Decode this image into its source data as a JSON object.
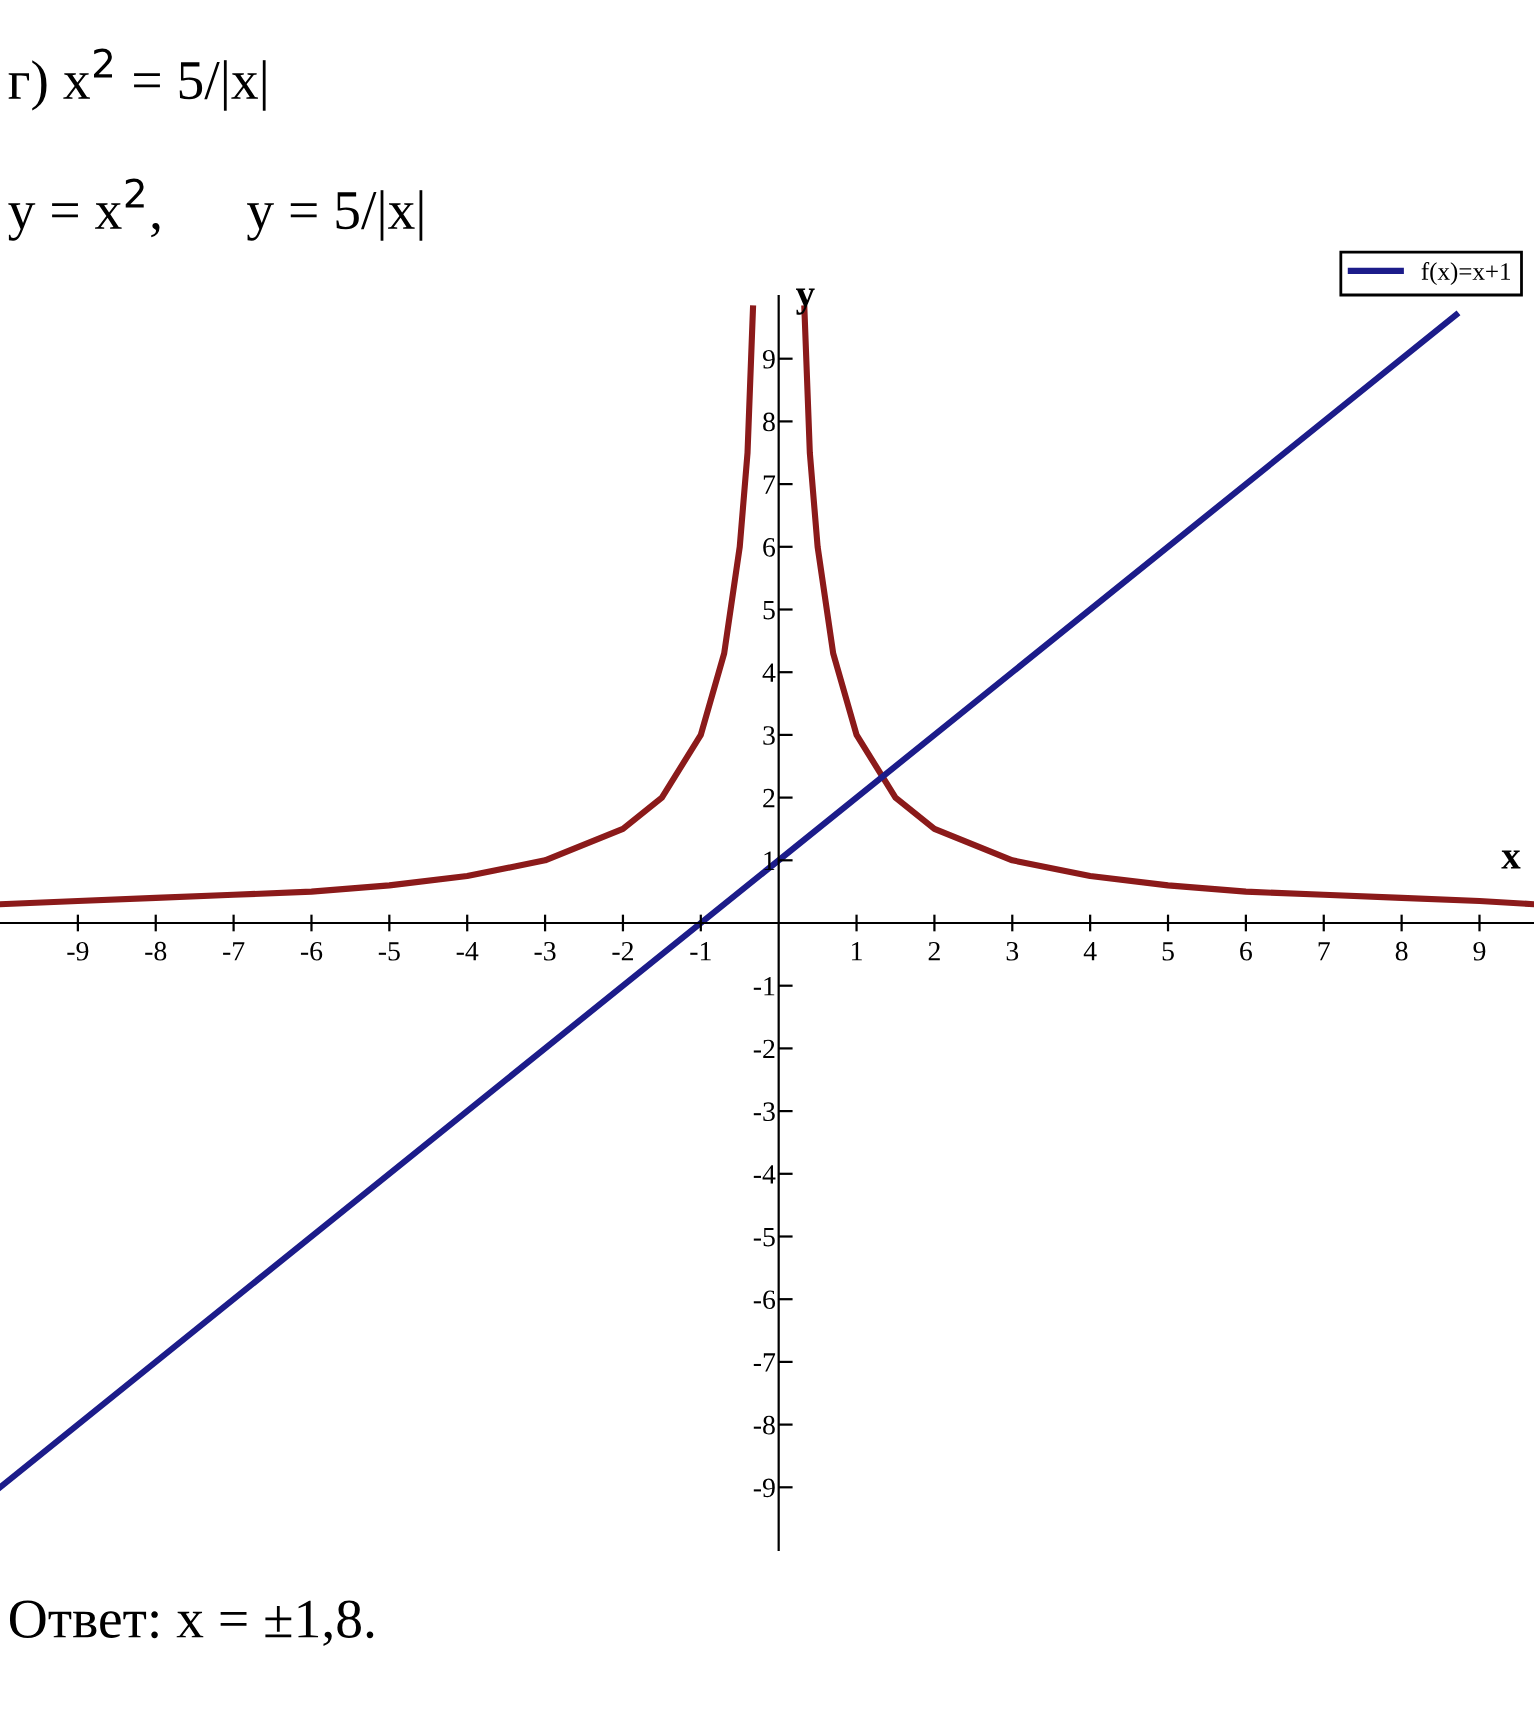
{
  "chart_data": {
    "type": "line",
    "title": "г) x$^{2}$ = 5/|x|",
    "subtitle": "y = x$^{2}$,      y = 5/|x|",
    "xlabel": "x",
    "ylabel": "y",
    "annotations": [
      "Ответ: x = ±1,8."
    ],
    "series": [
      {
        "name": null,
        "color": "#8b1a1a",
        "x": [
          -10,
          -9,
          -8,
          -7,
          -6,
          -5,
          -4,
          -3,
          -2,
          -1.5,
          -1,
          -0.7,
          -0.5,
          -0.4,
          -0.33
        ],
        "values": [
          0.3,
          0.35,
          0.4,
          0.45,
          0.5,
          0.6,
          0.75,
          1.0,
          1.5,
          2.0,
          3.0,
          4.3,
          6.0,
          7.5,
          9.8
        ]
      },
      {
        "name": null,
        "color": "#8b1a1a",
        "x": [
          0.33,
          0.4,
          0.5,
          0.7,
          1,
          1.5,
          2,
          3,
          4,
          5,
          6,
          7,
          8,
          9,
          9.7
        ],
        "values": [
          9.8,
          7.5,
          6.0,
          4.3,
          3.0,
          2.0,
          1.5,
          1.0,
          0.75,
          0.6,
          0.5,
          0.45,
          0.4,
          0.35,
          0.3
        ]
      },
      {
        "name": "f(x)=x+1",
        "color": "#1c1c8a",
        "x": [
          -10,
          8.7
        ],
        "values": [
          -9,
          9.7
        ]
      }
    ],
    "xlim": [
      -10,
      9.7
    ],
    "ylim": [
      -10,
      10
    ],
    "xticks": [
      -9,
      -8,
      -7,
      -6,
      -5,
      -4,
      -3,
      -2,
      -1,
      1,
      2,
      3,
      4,
      5,
      6,
      7,
      8,
      9
    ],
    "yticks": [
      -9,
      -8,
      -7,
      -6,
      -5,
      -4,
      -3,
      -2,
      -1,
      1,
      2,
      3,
      4,
      5,
      6,
      7,
      8,
      9
    ],
    "legend": "top right",
    "grid": false,
    "marker": "none",
    "line_style": "solid"
  }
}
